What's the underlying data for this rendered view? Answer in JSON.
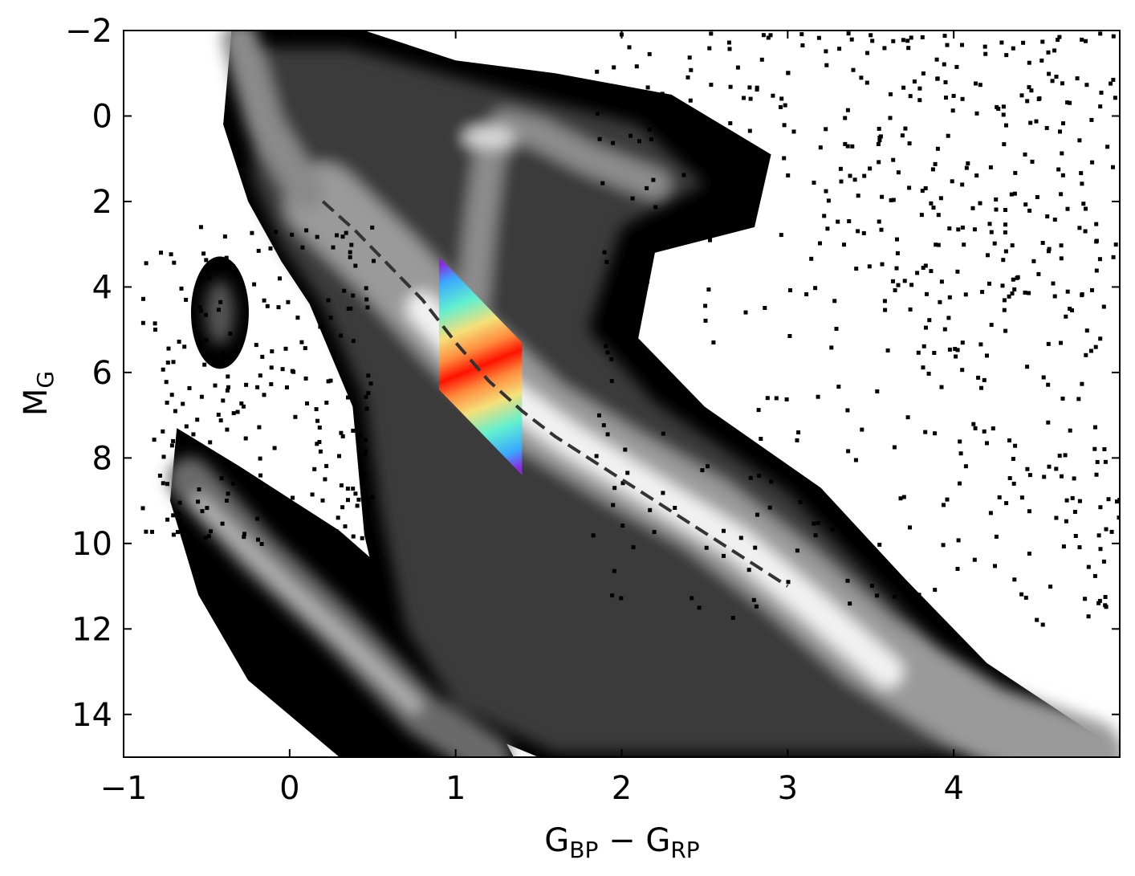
{
  "chart_data": {
    "type": "heatmap",
    "title": "",
    "xlabel": {
      "main": "G",
      "sub1": "BP",
      "minus": " − ",
      "main2": "G",
      "sub2": "RP"
    },
    "ylabel": {
      "main": "M",
      "sub": "G"
    },
    "xlim": [
      -1,
      5
    ],
    "ylim": [
      15,
      -2
    ],
    "y_inverted": true,
    "grid": false,
    "xticks": [
      {
        "value": -1,
        "label": "−1"
      },
      {
        "value": 0,
        "label": "0"
      },
      {
        "value": 1,
        "label": "1"
      },
      {
        "value": 2,
        "label": "2"
      },
      {
        "value": 3,
        "label": "3"
      },
      {
        "value": 4,
        "label": "4"
      }
    ],
    "yticks": [
      {
        "value": -2,
        "label": "−2"
      },
      {
        "value": 0,
        "label": "0"
      },
      {
        "value": 2,
        "label": "2"
      },
      {
        "value": 4,
        "label": "4"
      },
      {
        "value": 6,
        "label": "6"
      },
      {
        "value": 8,
        "label": "8"
      },
      {
        "value": 10,
        "label": "10"
      },
      {
        "value": 12,
        "label": "12"
      },
      {
        "value": 14,
        "label": "14"
      }
    ],
    "density_colormap": "greys (black = low, white = high)",
    "density_features": {
      "main_sequence": [
        [
          0.2,
          2.0
        ],
        [
          0.6,
          3.5
        ],
        [
          1.0,
          5.2
        ],
        [
          1.5,
          7.0
        ],
        [
          2.0,
          8.2
        ],
        [
          2.5,
          9.3
        ],
        [
          3.0,
          10.8
        ],
        [
          3.5,
          12.5
        ],
        [
          4.2,
          14.2
        ],
        [
          4.8,
          15.0
        ]
      ],
      "giant_branch": [
        [
          1.1,
          4.5
        ],
        [
          1.15,
          2.5
        ],
        [
          1.2,
          1.0
        ],
        [
          1.3,
          0.2
        ],
        [
          1.5,
          0.4
        ],
        [
          1.8,
          1.0
        ],
        [
          2.2,
          1.6
        ]
      ],
      "red_clump": [
        1.2,
        0.5
      ],
      "white_dwarf_sequence": [
        [
          -0.6,
          8.5
        ],
        [
          -0.2,
          10.2
        ],
        [
          0.3,
          12.0
        ],
        [
          0.8,
          14.0
        ],
        [
          1.2,
          15.0
        ]
      ],
      "hot_subdwarfs": [
        -0.4,
        4.5
      ]
    },
    "highlight_region": {
      "colormap": "rainbow (blue = low, red = high)",
      "x_range": [
        0.9,
        1.4
      ],
      "corners": [
        [
          0.9,
          3.3
        ],
        [
          1.4,
          5.3
        ],
        [
          1.4,
          8.4
        ],
        [
          0.9,
          6.4
        ]
      ]
    },
    "reference_line": {
      "style": "dashed",
      "color": "#333333",
      "x": [
        0.2,
        0.4,
        0.6,
        0.8,
        1.0,
        1.2,
        1.4,
        1.6,
        1.8,
        2.0,
        2.2,
        2.4,
        2.6,
        2.8,
        3.0
      ],
      "y": [
        2.0,
        2.7,
        3.5,
        4.3,
        5.3,
        6.2,
        6.9,
        7.5,
        8.0,
        8.5,
        9.0,
        9.5,
        10.0,
        10.5,
        11.0
      ]
    }
  }
}
